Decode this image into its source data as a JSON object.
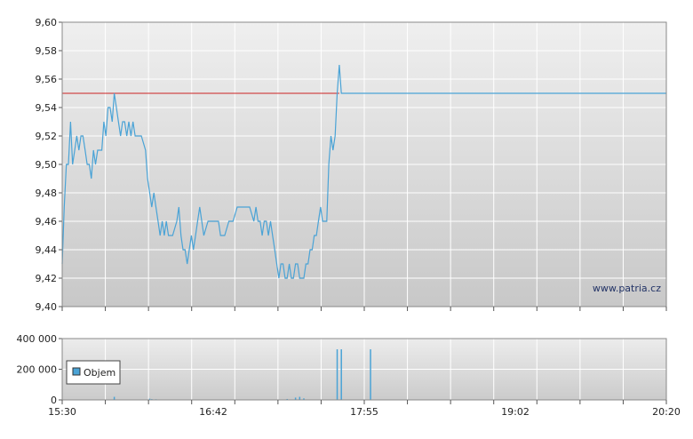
{
  "chart_data": [
    {
      "type": "line",
      "x_unit": "time",
      "x_range": [
        "15:30",
        "20:20"
      ],
      "y_range": [
        9.4,
        9.6
      ],
      "y_ticks": [
        "9,60",
        "9,58",
        "9,56",
        "9,54",
        "9,52",
        "9,50",
        "9,48",
        "9,46",
        "9,44",
        "9,42",
        "9,40"
      ],
      "grid": true,
      "reference_line": {
        "value": 9.55,
        "color": "#cc2222"
      },
      "series": [
        {
          "color": "#4aa3d6",
          "points": [
            [
              "15:30",
              9.43
            ],
            [
              "15:31",
              9.47
            ],
            [
              "15:32",
              9.5
            ],
            [
              "15:33",
              9.5
            ],
            [
              "15:34",
              9.53
            ],
            [
              "15:35",
              9.5
            ],
            [
              "15:36",
              9.51
            ],
            [
              "15:37",
              9.52
            ],
            [
              "15:38",
              9.51
            ],
            [
              "15:39",
              9.52
            ],
            [
              "15:40",
              9.52
            ],
            [
              "15:41",
              9.51
            ],
            [
              "15:42",
              9.5
            ],
            [
              "15:43",
              9.5
            ],
            [
              "15:44",
              9.49
            ],
            [
              "15:45",
              9.51
            ],
            [
              "15:46",
              9.5
            ],
            [
              "15:47",
              9.51
            ],
            [
              "15:48",
              9.51
            ],
            [
              "15:49",
              9.51
            ],
            [
              "15:50",
              9.53
            ],
            [
              "15:51",
              9.52
            ],
            [
              "15:52",
              9.54
            ],
            [
              "15:53",
              9.54
            ],
            [
              "15:54",
              9.53
            ],
            [
              "15:55",
              9.55
            ],
            [
              "15:56",
              9.54
            ],
            [
              "15:57",
              9.53
            ],
            [
              "15:58",
              9.52
            ],
            [
              "15:59",
              9.53
            ],
            [
              "16:00",
              9.53
            ],
            [
              "16:01",
              9.52
            ],
            [
              "16:02",
              9.53
            ],
            [
              "16:03",
              9.52
            ],
            [
              "16:04",
              9.53
            ],
            [
              "16:05",
              9.52
            ],
            [
              "16:06",
              9.52
            ],
            [
              "16:08",
              9.52
            ],
            [
              "16:10",
              9.51
            ],
            [
              "16:11",
              9.49
            ],
            [
              "16:13",
              9.47
            ],
            [
              "16:14",
              9.48
            ],
            [
              "16:15",
              9.47
            ],
            [
              "16:16",
              9.46
            ],
            [
              "16:17",
              9.45
            ],
            [
              "16:18",
              9.46
            ],
            [
              "16:19",
              9.45
            ],
            [
              "16:20",
              9.46
            ],
            [
              "16:21",
              9.45
            ],
            [
              "16:23",
              9.45
            ],
            [
              "16:25",
              9.46
            ],
            [
              "16:26",
              9.47
            ],
            [
              "16:27",
              9.45
            ],
            [
              "16:28",
              9.44
            ],
            [
              "16:29",
              9.44
            ],
            [
              "16:30",
              9.43
            ],
            [
              "16:31",
              9.44
            ],
            [
              "16:32",
              9.45
            ],
            [
              "16:33",
              9.44
            ],
            [
              "16:34",
              9.45
            ],
            [
              "16:35",
              9.46
            ],
            [
              "16:36",
              9.47
            ],
            [
              "16:37",
              9.46
            ],
            [
              "16:38",
              9.45
            ],
            [
              "16:40",
              9.46
            ],
            [
              "16:42",
              9.46
            ],
            [
              "16:45",
              9.46
            ],
            [
              "16:46",
              9.45
            ],
            [
              "16:48",
              9.45
            ],
            [
              "16:50",
              9.46
            ],
            [
              "16:52",
              9.46
            ],
            [
              "16:54",
              9.47
            ],
            [
              "16:56",
              9.47
            ],
            [
              "16:58",
              9.47
            ],
            [
              "17:00",
              9.47
            ],
            [
              "17:02",
              9.46
            ],
            [
              "17:03",
              9.47
            ],
            [
              "17:04",
              9.46
            ],
            [
              "17:05",
              9.46
            ],
            [
              "17:06",
              9.45
            ],
            [
              "17:07",
              9.46
            ],
            [
              "17:08",
              9.46
            ],
            [
              "17:09",
              9.45
            ],
            [
              "17:10",
              9.46
            ],
            [
              "17:11",
              9.45
            ],
            [
              "17:12",
              9.44
            ],
            [
              "17:13",
              9.43
            ],
            [
              "17:14",
              9.42
            ],
            [
              "17:15",
              9.43
            ],
            [
              "17:16",
              9.43
            ],
            [
              "17:17",
              9.42
            ],
            [
              "17:18",
              9.42
            ],
            [
              "17:19",
              9.43
            ],
            [
              "17:20",
              9.42
            ],
            [
              "17:21",
              9.42
            ],
            [
              "17:22",
              9.43
            ],
            [
              "17:23",
              9.43
            ],
            [
              "17:24",
              9.42
            ],
            [
              "17:25",
              9.42
            ],
            [
              "17:26",
              9.42
            ],
            [
              "17:27",
              9.43
            ],
            [
              "17:28",
              9.43
            ],
            [
              "17:29",
              9.44
            ],
            [
              "17:30",
              9.44
            ],
            [
              "17:31",
              9.45
            ],
            [
              "17:32",
              9.45
            ],
            [
              "17:33",
              9.46
            ],
            [
              "17:34",
              9.47
            ],
            [
              "17:35",
              9.46
            ],
            [
              "17:36",
              9.46
            ],
            [
              "17:37",
              9.46
            ],
            [
              "17:38",
              9.5
            ],
            [
              "17:39",
              9.52
            ],
            [
              "17:40",
              9.51
            ],
            [
              "17:41",
              9.52
            ],
            [
              "17:42",
              9.55
            ],
            [
              "17:43",
              9.57
            ],
            [
              "17:44",
              9.55
            ],
            [
              "17:45",
              9.55
            ],
            [
              "17:50",
              9.55
            ],
            [
              "18:00",
              9.55
            ],
            [
              "18:20",
              9.55
            ],
            [
              "18:40",
              9.55
            ],
            [
              "19:00",
              9.55
            ],
            [
              "19:30",
              9.55
            ],
            [
              "20:00",
              9.55
            ],
            [
              "20:20",
              9.55
            ]
          ]
        }
      ]
    },
    {
      "type": "bar",
      "x_unit": "time",
      "y_range": [
        0,
        400000
      ],
      "y_ticks": [
        "400 000",
        "200 000",
        "0"
      ],
      "grid": true,
      "legend": {
        "placement": "left",
        "label": "Objem",
        "color": "#4aa3d6"
      },
      "series": [
        {
          "name": "Objem",
          "color": "#4aa3d6",
          "points": [
            [
              "15:55",
              20000
            ],
            [
              "16:12",
              8000
            ],
            [
              "16:13",
              5000
            ],
            [
              "16:15",
              4000
            ],
            [
              "17:18",
              6000
            ],
            [
              "17:22",
              15000
            ],
            [
              "17:24",
              20000
            ],
            [
              "17:26",
              10000
            ],
            [
              "17:42",
              330000
            ],
            [
              "17:44",
              330000
            ],
            [
              "17:58",
              330000
            ]
          ]
        }
      ]
    }
  ],
  "x_axis": {
    "ticks": [
      "15:30",
      "16:42",
      "17:55",
      "19:02",
      "20:20"
    ]
  },
  "watermark": "www.patria.cz"
}
